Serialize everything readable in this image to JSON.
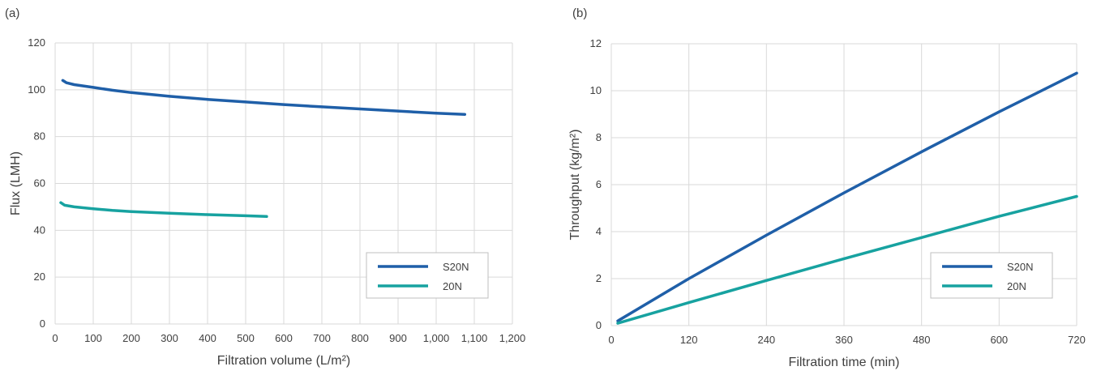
{
  "panels": {
    "a": "(a)",
    "b": "(b)"
  },
  "colors": {
    "s20n": "#1f5fa8",
    "n20": "#17a2a0",
    "grid": "#d9d9d9",
    "axis": "#bfbfbf"
  },
  "chart_data": [
    {
      "type": "line",
      "panel": "(a)",
      "xlabel": "Filtration volume (L/m²)",
      "ylabel": "Flux (LMH)",
      "xlim": [
        0,
        1200
      ],
      "ylim": [
        0,
        120
      ],
      "xticks": [
        0,
        100,
        200,
        300,
        400,
        500,
        600,
        700,
        800,
        900,
        1000,
        1100,
        1200
      ],
      "xtick_labels": [
        "0",
        "100",
        "200",
        "300",
        "400",
        "500",
        "600",
        "700",
        "800",
        "900",
        "1,000",
        "1,100",
        "1,200"
      ],
      "yticks": [
        0,
        20,
        40,
        60,
        80,
        100,
        120
      ],
      "ytick_labels": [
        "0",
        "20",
        "40",
        "60",
        "80",
        "100",
        "120"
      ],
      "grid": true,
      "legend": "bottom-right",
      "series": [
        {
          "name": "S20N",
          "color": "#1f5fa8",
          "x": [
            20,
            30,
            50,
            100,
            150,
            200,
            300,
            400,
            500,
            600,
            700,
            800,
            900,
            1000,
            1075
          ],
          "y": [
            104,
            103,
            102.2,
            101,
            99.8,
            98.8,
            97.2,
            95.9,
            94.8,
            93.7,
            92.7,
            91.8,
            90.9,
            90,
            89.5
          ]
        },
        {
          "name": "20N",
          "color": "#17a2a0",
          "x": [
            15,
            25,
            50,
            100,
            150,
            200,
            300,
            400,
            500,
            555
          ],
          "y": [
            51.8,
            50.7,
            50,
            49.2,
            48.5,
            48,
            47.3,
            46.7,
            46.2,
            45.9
          ]
        }
      ]
    },
    {
      "type": "line",
      "panel": "(b)",
      "xlabel": "Filtration time (min)",
      "ylabel": "Throughput (kg/m²)",
      "xlim": [
        0,
        720
      ],
      "ylim": [
        0,
        12
      ],
      "xticks": [
        0,
        120,
        240,
        360,
        480,
        600,
        720
      ],
      "xtick_labels": [
        "0",
        "120",
        "240",
        "360",
        "480",
        "600",
        "720"
      ],
      "yticks": [
        0,
        2,
        4,
        6,
        8,
        10,
        12
      ],
      "ytick_labels": [
        "0",
        "2",
        "4",
        "6",
        "8",
        "10",
        "12"
      ],
      "grid": true,
      "legend": "bottom-right",
      "series": [
        {
          "name": "S20N",
          "color": "#1f5fa8",
          "x": [
            10,
            120,
            240,
            360,
            480,
            600,
            720
          ],
          "y": [
            0.2,
            2,
            3.85,
            5.65,
            7.4,
            9.1,
            10.75
          ]
        },
        {
          "name": "20N",
          "color": "#17a2a0",
          "x": [
            10,
            120,
            240,
            360,
            480,
            600,
            720
          ],
          "y": [
            0.1,
            0.98,
            1.92,
            2.85,
            3.75,
            4.65,
            5.5
          ]
        }
      ]
    }
  ]
}
